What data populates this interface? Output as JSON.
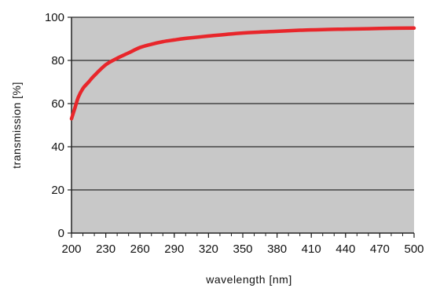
{
  "chart_data": {
    "type": "line",
    "title": "",
    "xlabel": "wavelength [nm]",
    "ylabel": "transmission [%]",
    "xlim": [
      200,
      500
    ],
    "ylim": [
      0,
      100
    ],
    "x_ticks": [
      200,
      230,
      260,
      290,
      320,
      350,
      380,
      410,
      440,
      470,
      500
    ],
    "y_ticks": [
      0,
      20,
      40,
      60,
      80,
      100
    ],
    "grid": {
      "horizontal": true,
      "vertical": false
    },
    "plot_background": "#c8c8c8",
    "series": [
      {
        "name": "",
        "color": "#e8262b",
        "x": [
          200,
          203,
          206,
          210,
          215,
          220,
          230,
          240,
          250,
          260,
          270,
          280,
          290,
          300,
          320,
          340,
          360,
          380,
          400,
          420,
          440,
          460,
          480,
          500
        ],
        "y": [
          53,
          58,
          63,
          67,
          70,
          73,
          78,
          81,
          83.5,
          86,
          87.5,
          88.7,
          89.5,
          90.2,
          91.3,
          92.3,
          93,
          93.5,
          94,
          94.3,
          94.5,
          94.7,
          94.9,
          95
        ]
      }
    ]
  }
}
